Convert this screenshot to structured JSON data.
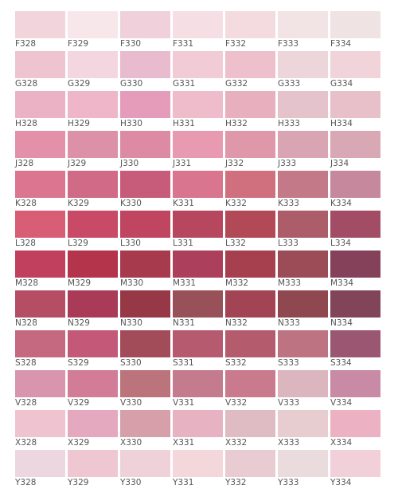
{
  "rows": [
    {
      "prefix": "F",
      "items": [
        {
          "code": "F328",
          "color": "#f2d4dc"
        },
        {
          "code": "F329",
          "color": "#f8e7ea"
        },
        {
          "code": "F330",
          "color": "#f0d0da"
        },
        {
          "code": "F331",
          "color": "#f5dfe4"
        },
        {
          "code": "F332",
          "color": "#f3dbe0"
        },
        {
          "code": "F333",
          "color": "#f2e4e5"
        },
        {
          "code": "F334",
          "color": "#f0e3e4"
        }
      ]
    },
    {
      "prefix": "G",
      "items": [
        {
          "code": "G328",
          "color": "#eec4d0"
        },
        {
          "code": "G329",
          "color": "#f4d6e1"
        },
        {
          "code": "G330",
          "color": "#e9bbcf"
        },
        {
          "code": "G331",
          "color": "#f1ccd6"
        },
        {
          "code": "G332",
          "color": "#edc0cb"
        },
        {
          "code": "G333",
          "color": "#ecd6da"
        },
        {
          "code": "G334",
          "color": "#f1d3da"
        }
      ]
    },
    {
      "prefix": "H",
      "items": [
        {
          "code": "H328",
          "color": "#ebb2c5"
        },
        {
          "code": "H329",
          "color": "#efb5c9"
        },
        {
          "code": "H330",
          "color": "#e59cba"
        },
        {
          "code": "H331",
          "color": "#efbccb"
        },
        {
          "code": "H332",
          "color": "#e8b0bf"
        },
        {
          "code": "H333",
          "color": "#e4c3cc"
        },
        {
          "code": "H334",
          "color": "#e8c0ca"
        }
      ]
    },
    {
      "prefix": "J",
      "items": [
        {
          "code": "J328",
          "color": "#e391a8"
        },
        {
          "code": "J329",
          "color": "#dc91a9"
        },
        {
          "code": "J330",
          "color": "#dd8aa5"
        },
        {
          "code": "J331",
          "color": "#e89ab0"
        },
        {
          "code": "J332",
          "color": "#de98aa"
        },
        {
          "code": "J333",
          "color": "#daa5b2"
        },
        {
          "code": "J334",
          "color": "#d9a8b5"
        }
      ]
    },
    {
      "prefix": "K",
      "items": [
        {
          "code": "K328",
          "color": "#dc7690"
        },
        {
          "code": "K329",
          "color": "#d06a86"
        },
        {
          "code": "K330",
          "color": "#c65c7a"
        },
        {
          "code": "K331",
          "color": "#d9758e"
        },
        {
          "code": "K332",
          "color": "#d0707f"
        },
        {
          "code": "K333",
          "color": "#c37988"
        },
        {
          "code": "K334",
          "color": "#c6889c"
        }
      ]
    },
    {
      "prefix": "L",
      "items": [
        {
          "code": "L328",
          "color": "#d75e75"
        },
        {
          "code": "L329",
          "color": "#c84a66"
        },
        {
          "code": "L330",
          "color": "#bf4560"
        },
        {
          "code": "L331",
          "color": "#b6475e"
        },
        {
          "code": "L332",
          "color": "#b24956"
        },
        {
          "code": "L333",
          "color": "#ad5c69"
        },
        {
          "code": "L334",
          "color": "#a24d65"
        }
      ]
    },
    {
      "prefix": "M",
      "items": [
        {
          "code": "M328",
          "color": "#c1405d"
        },
        {
          "code": "M329",
          "color": "#b4344b"
        },
        {
          "code": "M330",
          "color": "#a73b4d"
        },
        {
          "code": "M331",
          "color": "#ac3f5c"
        },
        {
          "code": "M332",
          "color": "#a6404f"
        },
        {
          "code": "M333",
          "color": "#9b4c56"
        },
        {
          "code": "M334",
          "color": "#86415a"
        }
      ]
    },
    {
      "prefix": "N",
      "items": [
        {
          "code": "N328",
          "color": "#b54e64"
        },
        {
          "code": "N329",
          "color": "#aa3b58"
        },
        {
          "code": "N330",
          "color": "#973847"
        },
        {
          "code": "N331",
          "color": "#985158"
        },
        {
          "code": "N332",
          "color": "#a24453"
        },
        {
          "code": "N333",
          "color": "#8f4850"
        },
        {
          "code": "N334",
          "color": "#824459"
        }
      ]
    },
    {
      "prefix": "S",
      "items": [
        {
          "code": "S328",
          "color": "#c46980"
        },
        {
          "code": "S329",
          "color": "#c45879"
        },
        {
          "code": "S330",
          "color": "#a24c5a"
        },
        {
          "code": "S331",
          "color": "#b65a70"
        },
        {
          "code": "S332",
          "color": "#b45b6d"
        },
        {
          "code": "S333",
          "color": "#bd7381"
        },
        {
          "code": "S334",
          "color": "#9b5672"
        }
      ]
    },
    {
      "prefix": "V",
      "items": [
        {
          "code": "V328",
          "color": "#d995ad"
        },
        {
          "code": "V329",
          "color": "#d27c97"
        },
        {
          "code": "V330",
          "color": "#bb737c"
        },
        {
          "code": "V331",
          "color": "#c47b8d"
        },
        {
          "code": "V332",
          "color": "#c97b8d"
        },
        {
          "code": "V333",
          "color": "#dbb6bf"
        },
        {
          "code": "V334",
          "color": "#c98aa5"
        }
      ]
    },
    {
      "prefix": "X",
      "items": [
        {
          "code": "X328",
          "color": "#f0c3d0"
        },
        {
          "code": "X329",
          "color": "#e5a9bf"
        },
        {
          "code": "X330",
          "color": "#d79fa9"
        },
        {
          "code": "X331",
          "color": "#e7b3c3"
        },
        {
          "code": "X332",
          "color": "#dfbcc3"
        },
        {
          "code": "X333",
          "color": "#e7cdcf"
        },
        {
          "code": "X334",
          "color": "#ecb2c3"
        }
      ]
    },
    {
      "prefix": "Y",
      "items": [
        {
          "code": "Y328",
          "color": "#ecd7e1"
        },
        {
          "code": "Y329",
          "color": "#efc7d2"
        },
        {
          "code": "Y330",
          "color": "#efd1da"
        },
        {
          "code": "Y331",
          "color": "#f3d7da"
        },
        {
          "code": "Y332",
          "color": "#e8ccd1"
        },
        {
          "code": "Y333",
          "color": "#eadbdc"
        },
        {
          "code": "Y334",
          "color": "#f1d0da"
        }
      ]
    }
  ]
}
